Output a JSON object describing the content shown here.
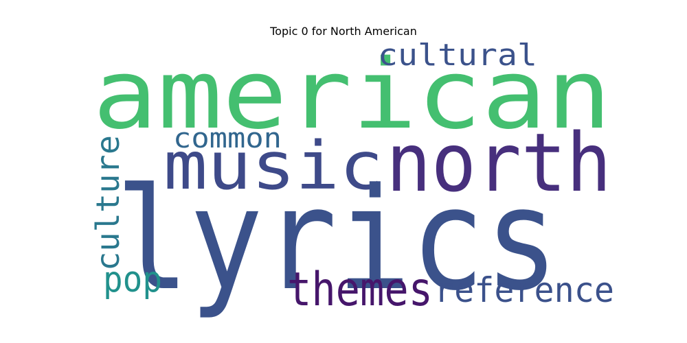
{
  "title": "Topic 0 for North American",
  "words": [
    {
      "text": "american",
      "color": "#44bf70"
    },
    {
      "text": "lyrics",
      "color": "#3b528b"
    },
    {
      "text": "north",
      "color": "#472f7d"
    },
    {
      "text": "music",
      "color": "#3e4a89"
    },
    {
      "text": "themes",
      "color": "#46166b"
    },
    {
      "text": "reference",
      "color": "#3b518b"
    },
    {
      "text": "cultural",
      "color": "#3b528b"
    },
    {
      "text": "common",
      "color": "#31668e"
    },
    {
      "text": "culture",
      "color": "#2a788e"
    },
    {
      "text": "pop",
      "color": "#21918c"
    }
  ]
}
